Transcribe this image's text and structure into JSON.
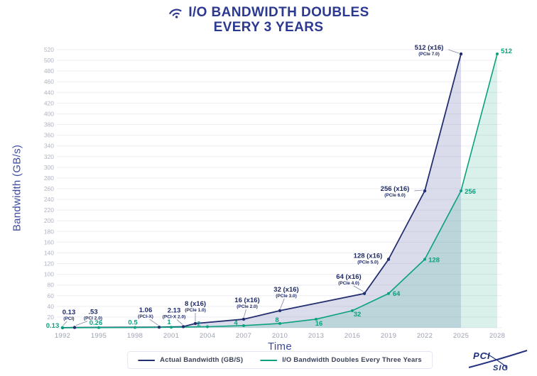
{
  "title": {
    "line1": "I/O BANDWIDTH DOUBLES",
    "line2": "EVERY 3 YEARS"
  },
  "colors": {
    "navy": "#242F6F",
    "teal": "#0AA17E",
    "title_navy": "#2B3990",
    "axis_title": "#3D4B9E",
    "y_tick": "#AFB4C3",
    "x_tick": "#9CA2B2",
    "grid": "#EDEEF4",
    "navy_fill": "rgba(90,95,165,0.22)",
    "teal_fill": "rgba(64,186,150,0.20)",
    "leader": "#8087A0"
  },
  "chart_data": {
    "type": "line",
    "title": "I/O BANDWIDTH DOUBLES EVERY 3 YEARS",
    "xlabel": "Time",
    "ylabel": "Bandwidth (GB/s)",
    "xlim": [
      1992,
      2028
    ],
    "ylim": [
      0,
      520
    ],
    "grid": true,
    "legend_position": "bottom",
    "yticks": [
      20,
      40,
      60,
      80,
      100,
      120,
      140,
      160,
      180,
      200,
      220,
      240,
      260,
      280,
      300,
      320,
      340,
      360,
      380,
      400,
      420,
      440,
      460,
      480,
      500,
      520
    ],
    "xticks": [
      1992,
      1995,
      1998,
      2001,
      2004,
      2007,
      2010,
      2013,
      2016,
      2019,
      2022,
      2025,
      2028
    ],
    "series": [
      {
        "name": "Actual Bandwidth (GB/S)",
        "color_key": "navy",
        "points": [
          {
            "x": 1992,
            "v": 0.13,
            "label": "0.13",
            "sub": "(PCI)",
            "dx": 9,
            "dy": -22
          },
          {
            "x": 1993,
            "v": 0.53,
            "label": ".53",
            "sub": "(PCI 2.0)",
            "dx": 26,
            "dy": -22
          },
          {
            "x": 2000,
            "v": 1.06,
            "label": "1.06",
            "sub": "(PCI-X)",
            "dx": -19,
            "dy": -24
          },
          {
            "x": 2002,
            "v": 2.13,
            "label": "2.13",
            "sub": "(PCI-X 2.0)",
            "dx": -13,
            "dy": -23
          },
          {
            "x": 2003,
            "v": 8,
            "label": "8 (x16)",
            "sub": "(PCIe 1.0)",
            "dx": 0,
            "dy": -28
          },
          {
            "x": 2007,
            "v": 16,
            "label": "16 (x16)",
            "sub": "(PCIe 2.0)",
            "dx": 5,
            "dy": -27
          },
          {
            "x": 2010,
            "v": 32,
            "label": "32 (x16)",
            "sub": "(PCIe 3.0)",
            "dx": 9,
            "dy": -30
          },
          {
            "x": 2017,
            "v": 64,
            "label": "64 (x16)",
            "sub": "(PCIe 4.0)",
            "dx": -22,
            "dy": -24
          },
          {
            "x": 2019,
            "v": 128,
            "label": "128 (x16)",
            "sub": "(PCIe 5.0)",
            "dx": -29,
            "dy": -5
          },
          {
            "x": 2022,
            "v": 256,
            "label": "256 (x16)",
            "sub": "(PCIe 6.0)",
            "dx": -42,
            "dy": -3
          },
          {
            "x": 2025,
            "v": 512,
            "label": "512 (x16)",
            "sub": "(PCIe 7.0)",
            "dx": -45,
            "dy": -9
          }
        ]
      },
      {
        "name": "I/O Bandwidth Doubles Every Three Years",
        "color_key": "teal",
        "points": [
          {
            "x": 1992,
            "v": 0.13,
            "label": "0.13",
            "dx": -14,
            "dy": -3
          },
          {
            "x": 1995,
            "v": 0.26,
            "label": "0.26",
            "dx": -4,
            "dy": -7
          },
          {
            "x": 1998,
            "v": 0.5,
            "label": "0.5",
            "dx": -3,
            "dy": -7
          },
          {
            "x": 2001,
            "v": 1,
            "label": "1",
            "dx": -3,
            "dy": -7
          },
          {
            "x": 2004,
            "v": 2,
            "label": "2",
            "dx": -12,
            "dy": -4
          },
          {
            "x": 2007,
            "v": 4,
            "label": "4",
            "dx": -11,
            "dy": -4
          },
          {
            "x": 2010,
            "v": 8,
            "label": "8",
            "dx": -4,
            "dy": -5
          },
          {
            "x": 2013,
            "v": 16,
            "label": "16",
            "dx": 4,
            "dy": 6
          },
          {
            "x": 2016,
            "v": 32,
            "label": "32",
            "dx": 7,
            "dy": 5
          },
          {
            "x": 2019,
            "v": 64,
            "label": "64",
            "dx": 11,
            "dy": 0
          },
          {
            "x": 2022,
            "v": 128,
            "label": "128",
            "dx": 13,
            "dy": 1
          },
          {
            "x": 2025,
            "v": 256,
            "label": "256",
            "dx": 13,
            "dy": 1
          },
          {
            "x": 2028,
            "v": 512,
            "label": "512",
            "dx": 13,
            "dy": -4
          }
        ]
      }
    ]
  },
  "y_axis": {
    "label": "Bandwidth (GB/s)"
  },
  "x_axis": {
    "label": "Time"
  },
  "legend": {
    "items": [
      {
        "label": "Actual Bandwidth (GB/S)"
      },
      {
        "label": "I/O Bandwidth Doubles Every Three Years"
      }
    ]
  },
  "logo": {
    "line1": "PCI",
    "line2": "SIG"
  }
}
